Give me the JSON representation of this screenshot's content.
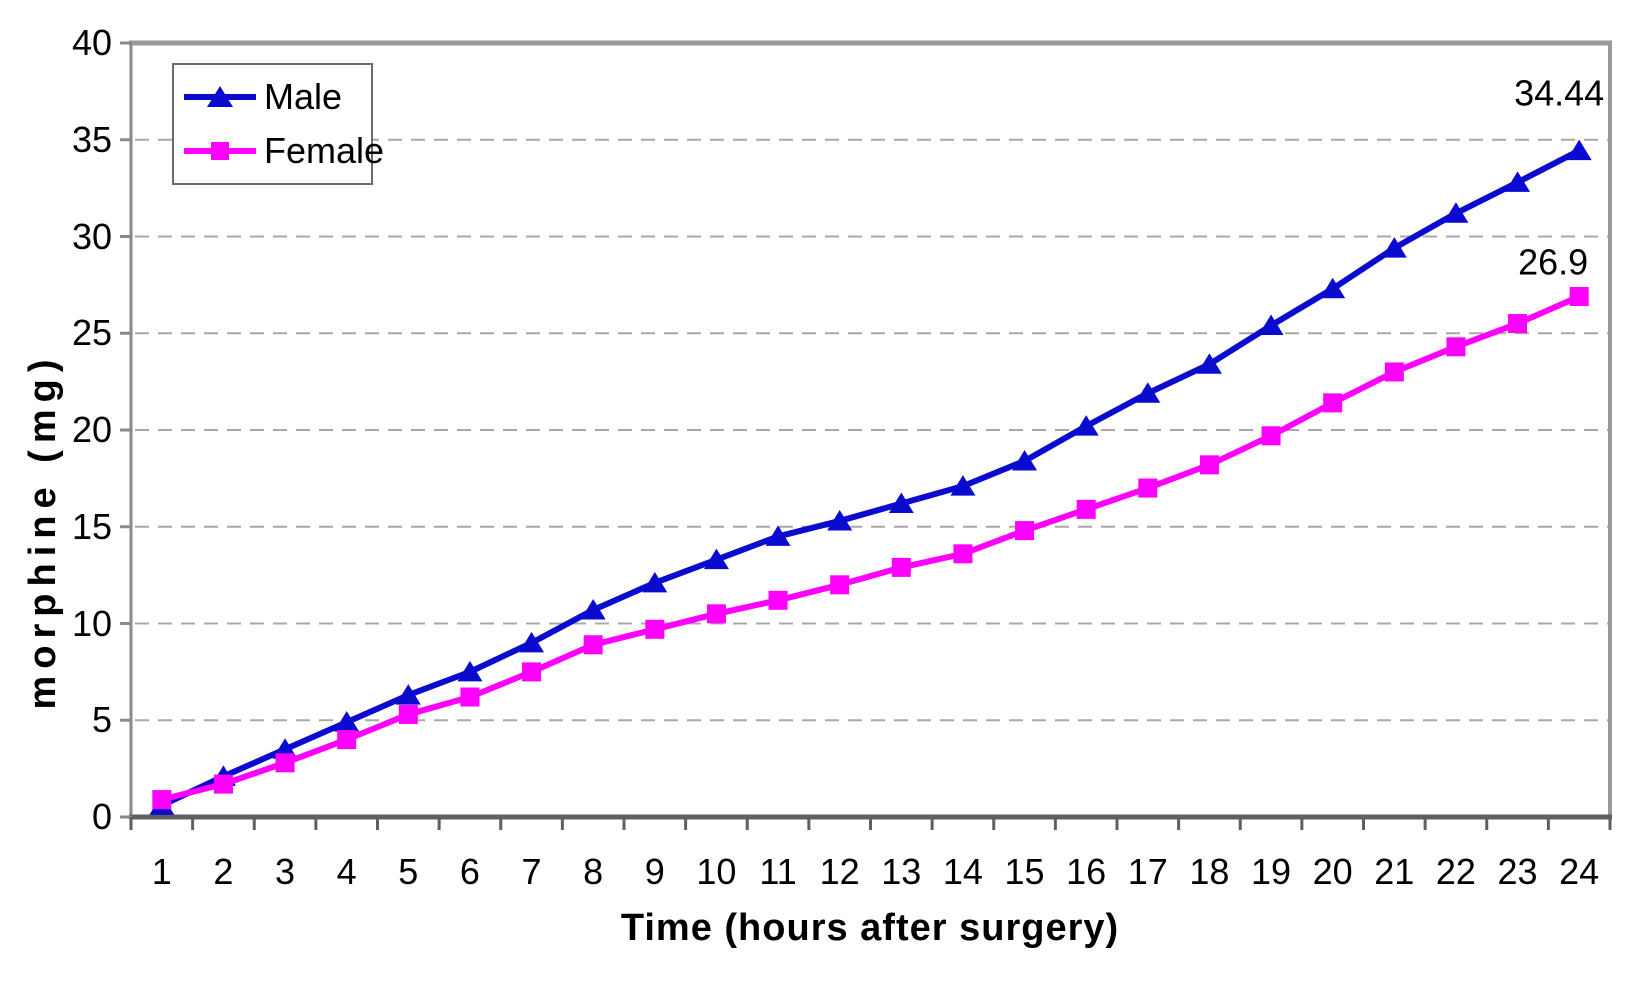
{
  "chart_data": {
    "type": "line",
    "title": "",
    "xlabel": "Time (hours after surgery)",
    "ylabel": "morphine (mg)",
    "x_tick_labels": [
      "1",
      "2",
      "3",
      "4",
      "5",
      "6",
      "7",
      "8",
      "9",
      "10",
      "11",
      "12",
      "13",
      "14",
      "15",
      "16",
      "17",
      "18",
      "19",
      "20",
      "21",
      "22",
      "23",
      "24"
    ],
    "y_tick_labels": [
      "0",
      "5",
      "10",
      "15",
      "20",
      "25",
      "30",
      "35",
      "40"
    ],
    "ylim": [
      0,
      40
    ],
    "grid": "horizontal-dashed",
    "legend_position": "top-left",
    "series": [
      {
        "name": "Male",
        "marker": "triangle",
        "color": "#0b0bd0",
        "values": [
          0.6,
          2.1,
          3.5,
          4.9,
          6.3,
          7.5,
          9.0,
          10.7,
          12.1,
          13.3,
          14.5,
          15.3,
          16.2,
          17.1,
          18.4,
          20.2,
          21.9,
          23.4,
          25.4,
          27.3,
          29.4,
          31.2,
          32.8,
          34.44
        ],
        "end_label": "34.44"
      },
      {
        "name": "Female",
        "marker": "square",
        "color": "#ff00ff",
        "values": [
          0.9,
          1.7,
          2.8,
          4.0,
          5.3,
          6.2,
          7.5,
          8.9,
          9.7,
          10.5,
          11.2,
          12.0,
          12.9,
          13.6,
          14.8,
          15.9,
          17.0,
          18.2,
          19.7,
          21.4,
          23.0,
          24.3,
          25.5,
          26.9
        ],
        "end_label": "26.9"
      }
    ]
  },
  "colors": {
    "background": "#ffffff",
    "gridline": "#a8a8a8",
    "top_border": "#9a9a9a",
    "right_border": "#9a9a9a",
    "left_axis": "#8a8a8a",
    "bottom_axis": "#5f5f5f",
    "text": "#000000"
  }
}
